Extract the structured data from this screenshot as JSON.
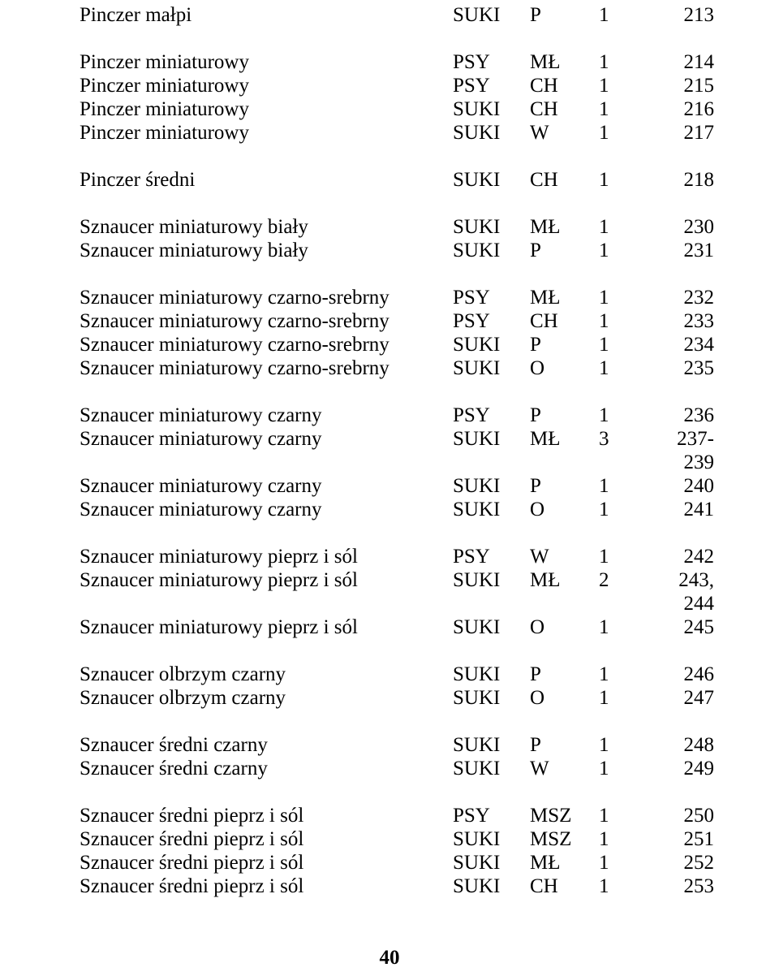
{
  "page_number": "40",
  "groups": [
    [
      {
        "name": "Pinczer małpi",
        "a": "SUKI",
        "b": "P",
        "c": "1",
        "d": "213"
      }
    ],
    [
      {
        "name": "Pinczer miniaturowy",
        "a": "PSY",
        "b": "MŁ",
        "c": "1",
        "d": "214"
      },
      {
        "name": "Pinczer miniaturowy",
        "a": "PSY",
        "b": "CH",
        "c": "1",
        "d": "215"
      },
      {
        "name": "Pinczer miniaturowy",
        "a": "SUKI",
        "b": "CH",
        "c": "1",
        "d": "216"
      },
      {
        "name": "Pinczer miniaturowy",
        "a": "SUKI",
        "b": "W",
        "c": "1",
        "d": "217"
      }
    ],
    [
      {
        "name": "Pinczer średni",
        "a": "SUKI",
        "b": "CH",
        "c": "1",
        "d": "218"
      }
    ],
    [
      {
        "name": "Sznaucer miniaturowy biały",
        "a": "SUKI",
        "b": "MŁ",
        "c": "1",
        "d": "230"
      },
      {
        "name": "Sznaucer miniaturowy biały",
        "a": "SUKI",
        "b": "P",
        "c": "1",
        "d": "231"
      }
    ],
    [
      {
        "name": "Sznaucer miniaturowy czarno-srebrny",
        "a": "PSY",
        "b": "MŁ",
        "c": "1",
        "d": "232"
      },
      {
        "name": "Sznaucer miniaturowy czarno-srebrny",
        "a": "PSY",
        "b": "CH",
        "c": "1",
        "d": "233"
      },
      {
        "name": "Sznaucer miniaturowy czarno-srebrny",
        "a": "SUKI",
        "b": "P",
        "c": "1",
        "d": "234"
      },
      {
        "name": "Sznaucer miniaturowy czarno-srebrny",
        "a": "SUKI",
        "b": "O",
        "c": "1",
        "d": "235"
      }
    ],
    [
      {
        "name": "Sznaucer miniaturowy czarny",
        "a": "PSY",
        "b": "P",
        "c": "1",
        "d": "236"
      },
      {
        "name": "Sznaucer miniaturowy czarny",
        "a": "SUKI",
        "b": "MŁ",
        "c": "3",
        "d": "237-239"
      },
      {
        "name": "Sznaucer miniaturowy czarny",
        "a": "SUKI",
        "b": "P",
        "c": "1",
        "d": "240"
      },
      {
        "name": "Sznaucer miniaturowy czarny",
        "a": "SUKI",
        "b": "O",
        "c": "1",
        "d": "241"
      }
    ],
    [
      {
        "name": "Sznaucer miniaturowy pieprz i sól",
        "a": "PSY",
        "b": "W",
        "c": "1",
        "d": "242"
      },
      {
        "name": "Sznaucer miniaturowy pieprz i sól",
        "a": "SUKI",
        "b": "MŁ",
        "c": "2",
        "d": "243, 244"
      },
      {
        "name": "Sznaucer miniaturowy pieprz i sól",
        "a": "SUKI",
        "b": "O",
        "c": "1",
        "d": "245"
      }
    ],
    [
      {
        "name": "Sznaucer olbrzym czarny",
        "a": "SUKI",
        "b": "P",
        "c": "1",
        "d": "246"
      },
      {
        "name": "Sznaucer olbrzym czarny",
        "a": "SUKI",
        "b": "O",
        "c": "1",
        "d": "247"
      }
    ],
    [
      {
        "name": "Sznaucer średni czarny",
        "a": "SUKI",
        "b": "P",
        "c": "1",
        "d": "248"
      },
      {
        "name": "Sznaucer średni czarny",
        "a": "SUKI",
        "b": "W",
        "c": "1",
        "d": "249"
      }
    ],
    [
      {
        "name": "Sznaucer średni pieprz i sól",
        "a": "PSY",
        "b": "MSZ",
        "c": "1",
        "d": "250"
      },
      {
        "name": "Sznaucer średni pieprz i sól",
        "a": "SUKI",
        "b": "MSZ",
        "c": "1",
        "d": "251"
      },
      {
        "name": "Sznaucer średni pieprz i sól",
        "a": "SUKI",
        "b": "MŁ",
        "c": "1",
        "d": "252"
      },
      {
        "name": "Sznaucer średni pieprz i sól",
        "a": "SUKI",
        "b": "CH",
        "c": "1",
        "d": "253"
      }
    ]
  ]
}
